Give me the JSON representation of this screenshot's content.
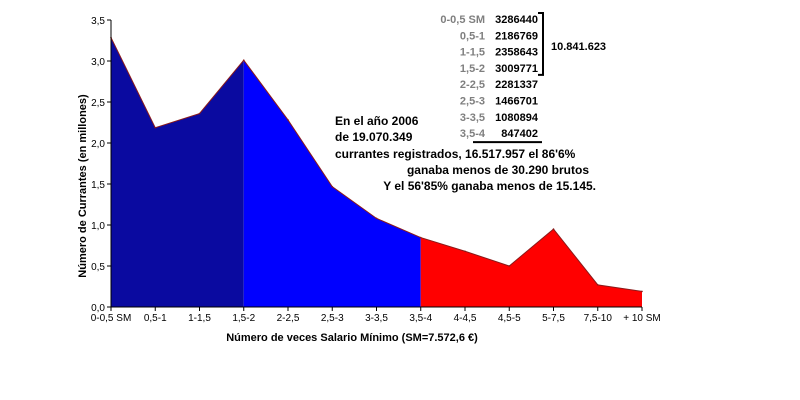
{
  "chart_data": {
    "type": "area",
    "xlabel": "Número de veces Salario Mínimo (SM=7.572,6 €)",
    "ylabel": "Número de Currantes (en millones)",
    "ylim": [
      0,
      3.5
    ],
    "yticks": [
      "0,0",
      "0,5",
      "1,0",
      "1,5",
      "2,0",
      "2,5",
      "3,0",
      "3,5"
    ],
    "categories": [
      "0-0,5 SM",
      "0,5-1",
      "1-1,5",
      "1,5-2",
      "2-2,5",
      "2,5-3",
      "3-3,5",
      "3,5-4",
      "4-4,5",
      "4,5-5",
      "5-7,5",
      "7,5-10",
      "+ 10 SM"
    ],
    "values": [
      3.286,
      2.187,
      2.359,
      3.01,
      2.281,
      1.467,
      1.081,
      0.847,
      0.68,
      0.5,
      0.95,
      0.27,
      0.19
    ],
    "segments": [
      {
        "from": 0,
        "to": 3,
        "color": "#0a0aa0"
      },
      {
        "from": 3,
        "to": 7,
        "color": "#0000ff"
      },
      {
        "from": 7,
        "to": 12,
        "color": "#ff0000"
      }
    ],
    "outline_color": "#8b1a1a",
    "table": {
      "rows": [
        {
          "range": "0-0,5 SM",
          "value": "3286440"
        },
        {
          "range": "0,5-1",
          "value": "2186769"
        },
        {
          "range": "1-1,5",
          "value": "2358643"
        },
        {
          "range": "1,5-2",
          "value": "3009771"
        },
        {
          "range": "2-2,5",
          "value": "2281337"
        },
        {
          "range": "2,5-3",
          "value": "1466701"
        },
        {
          "range": "3-3,5",
          "value": "1080894"
        },
        {
          "range": "3,5-4",
          "value": "847402"
        }
      ],
      "bracket_total": "10.841.623"
    },
    "annotation": [
      "En el año 2006",
      "de 19.070.349",
      "currantes registrados, 16.517.957 el 86'6%",
      "ganaba menos de 30.290 brutos",
      "Y el 56'85% ganaba menos de 15.145."
    ]
  }
}
